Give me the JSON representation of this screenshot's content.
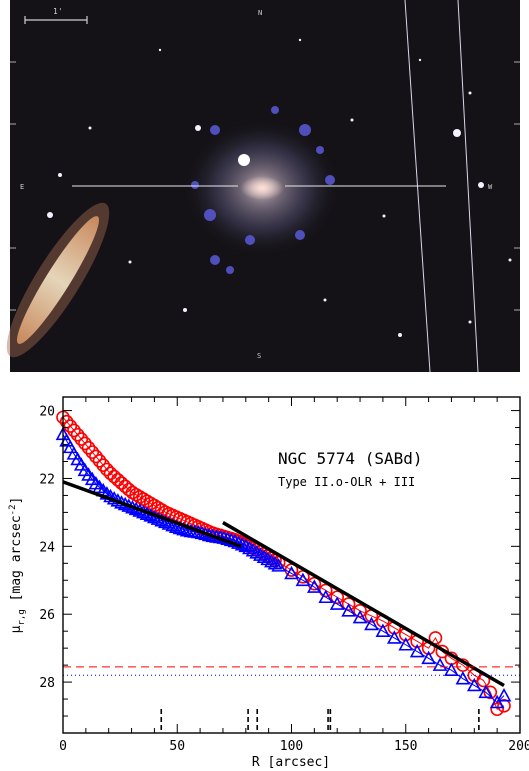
{
  "image_panel": {
    "scale_bar_label": "1'",
    "compass": {
      "north": "N",
      "east": "E",
      "west": "W",
      "south": "S"
    }
  },
  "chart_data": {
    "type": "scatter",
    "title": "NGC 5774 (SABd)",
    "subtitle": "Type II.o-OLR + III",
    "xlabel": "R [arcsec]",
    "ylabel": "μr,g [mag arcsec⁻²]",
    "ylabel_parts": {
      "sym": "μ",
      "sub": "r,g",
      "unit": " [mag arcsec",
      "sup": "-2",
      "close": "]"
    },
    "xlim": [
      0,
      200
    ],
    "ylim": [
      29.5,
      19.6
    ],
    "y_inverted": true,
    "xticks": [
      0,
      50,
      100,
      150,
      200
    ],
    "yticks": [
      20,
      22,
      24,
      26,
      28
    ],
    "grid": false,
    "series": [
      {
        "color": "#ff0000",
        "marker": "circle",
        "dense_until": 95,
        "x": [
          0,
          5,
          10,
          15,
          20,
          25,
          30,
          35,
          40,
          45,
          50,
          55,
          60,
          65,
          70,
          75,
          80,
          85,
          90,
          95,
          100,
          105,
          110,
          115,
          120,
          125,
          130,
          135,
          140,
          145,
          150,
          155,
          160,
          163,
          166,
          170,
          175,
          180,
          184,
          187,
          190,
          193
        ],
        "y": [
          20.2,
          20.6,
          21.0,
          21.4,
          21.8,
          22.1,
          22.4,
          22.6,
          22.8,
          23.0,
          23.15,
          23.3,
          23.45,
          23.6,
          23.7,
          23.8,
          23.95,
          24.1,
          24.3,
          24.5,
          24.7,
          24.9,
          25.1,
          25.3,
          25.5,
          25.7,
          25.9,
          26.05,
          26.2,
          26.4,
          26.6,
          26.8,
          27.0,
          26.7,
          27.1,
          27.3,
          27.5,
          27.8,
          27.95,
          28.3,
          28.8,
          28.7
        ]
      },
      {
        "color": "#0000ff",
        "marker": "triangle",
        "dense_until": 95,
        "x": [
          0,
          5,
          10,
          15,
          20,
          25,
          30,
          35,
          40,
          45,
          50,
          55,
          60,
          65,
          70,
          75,
          80,
          85,
          90,
          95,
          100,
          105,
          110,
          115,
          120,
          125,
          130,
          135,
          140,
          145,
          150,
          155,
          160,
          165,
          170,
          175,
          180,
          185,
          190,
          193
        ],
        "y": [
          20.7,
          21.3,
          21.8,
          22.2,
          22.5,
          22.7,
          22.85,
          23.0,
          23.15,
          23.3,
          23.45,
          23.55,
          23.6,
          23.7,
          23.75,
          23.85,
          24.0,
          24.2,
          24.4,
          24.6,
          24.8,
          25.0,
          25.2,
          25.5,
          25.7,
          25.9,
          26.1,
          26.3,
          26.5,
          26.7,
          26.9,
          27.1,
          27.3,
          27.5,
          27.65,
          27.9,
          28.1,
          28.3,
          28.6,
          28.4
        ]
      }
    ],
    "fit_lines": [
      {
        "x": [
          0,
          78
        ],
        "y": [
          22.1,
          24.0
        ]
      },
      {
        "x": [
          70,
          193
        ],
        "y": [
          23.3,
          28.1
        ]
      }
    ],
    "hlines": [
      {
        "y": 27.55,
        "style": "dashed",
        "color": "#ff0000"
      },
      {
        "y": 27.8,
        "style": "dotted",
        "color": "#0000ff"
      }
    ],
    "break_markers": [
      43,
      81,
      85,
      116,
      117,
      182
    ]
  }
}
